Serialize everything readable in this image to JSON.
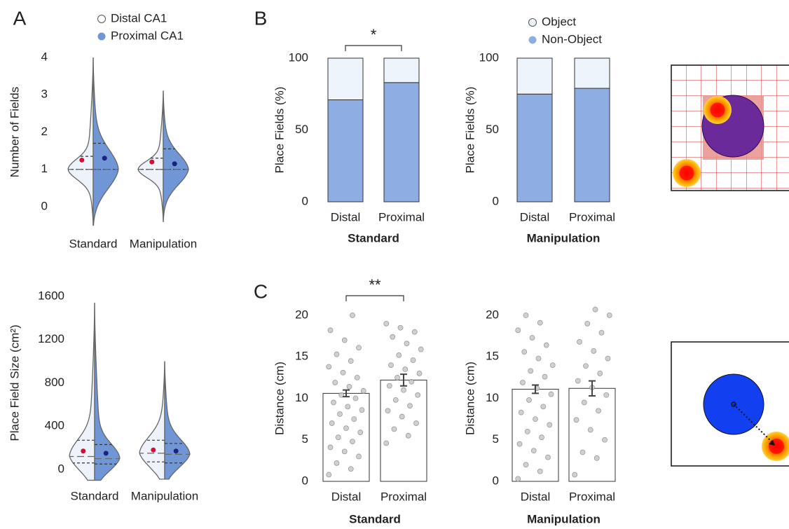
{
  "panel_labels": [
    "A",
    "B",
    "C"
  ],
  "chart_data": [
    {
      "type": "violin",
      "ylabel": "Number of Fields",
      "categories": [
        "Standard",
        "Manipulation"
      ],
      "ylim": [
        0,
        4
      ],
      "yticks": [
        0,
        1,
        2,
        3,
        4
      ],
      "series": [
        {
          "name": "Distal CA1",
          "color": "#eef3fb",
          "mean_color": "#d0103a",
          "values": [
            1.25,
            1.2
          ],
          "median": [
            1,
            1
          ],
          "q1": [
            1,
            1
          ],
          "q3": [
            1.35,
            1.3
          ],
          "min": [
            -0.5,
            -0.4
          ],
          "max": [
            4.0,
            3.1
          ]
        },
        {
          "name": "Proximal CA1",
          "color": "#7096d6",
          "mean_color": "#1a237e",
          "values": [
            1.3,
            1.15
          ],
          "median": [
            1,
            1
          ],
          "q1": [
            1,
            1
          ],
          "q3": [
            1.7,
            1.55
          ],
          "min": [
            -0.5,
            -0.4
          ],
          "max": [
            4.0,
            3.1
          ]
        }
      ]
    },
    {
      "type": "violin",
      "ylabel": "Place Field Size (cm²)",
      "categories": [
        "Standard",
        "Manipulation"
      ],
      "ylim": [
        0,
        1600
      ],
      "yticks": [
        0,
        400,
        800,
        1200,
        1600
      ],
      "series": [
        {
          "color": "#eef3fb",
          "mean_color": "#d0103a",
          "values": [
            170,
            180
          ],
          "median": [
            120,
            150
          ],
          "q1": [
            60,
            70
          ],
          "q3": [
            270,
            270
          ],
          "min": [
            -100,
            -90
          ],
          "max": [
            1540,
            1000
          ]
        },
        {
          "color": "#7096d6",
          "mean_color": "#1a237e",
          "values": [
            150,
            170
          ],
          "median": [
            100,
            140
          ],
          "q1": [
            50,
            60
          ],
          "q3": [
            230,
            240
          ],
          "min": [
            -100,
            -90
          ],
          "max": [
            1540,
            1000
          ]
        }
      ]
    },
    {
      "type": "stacked_bar",
      "ylabel": "Place Fields (%)",
      "xlabel": "Standard",
      "categories": [
        "Distal",
        "Proximal"
      ],
      "ylim": [
        0,
        100
      ],
      "yticks": [
        0,
        50,
        100
      ],
      "annotation": "*",
      "series": [
        {
          "color": "#8eaee3",
          "values": [
            71,
            83
          ]
        },
        {
          "color": "#eef4fc",
          "values": [
            29,
            17
          ]
        }
      ]
    },
    {
      "type": "stacked_bar",
      "ylabel": "Place Fields (%)",
      "xlabel": "Manipulation",
      "categories": [
        "Distal",
        "Proximal"
      ],
      "ylim": [
        0,
        100
      ],
      "yticks": [
        0,
        50,
        100
      ],
      "series": [
        {
          "name": "Non-Object",
          "color": "#8eaee3",
          "values": [
            75,
            79
          ]
        },
        {
          "name": "Object",
          "color": "#eef4fc",
          "values": [
            25,
            21
          ]
        }
      ]
    },
    {
      "type": "bar_points",
      "ylabel": "Distance (cm)",
      "xlabel": "Standard",
      "categories": [
        "Distal",
        "Proximal"
      ],
      "ylim": [
        0,
        20
      ],
      "yticks": [
        0,
        5,
        10,
        15,
        20
      ],
      "annotation": "**",
      "color": "#ffffff",
      "point_color": "#c8c8c8",
      "values": [
        10.6,
        12.2
      ],
      "errors": [
        0.4,
        0.7
      ],
      "points": [
        [
          0.8,
          1.5,
          2.2,
          3.0,
          3.6,
          4.1,
          4.8,
          5.3,
          5.9,
          6.4,
          7.0,
          7.5,
          8.1,
          8.6,
          9.0,
          9.5,
          10.0,
          10.4,
          10.9,
          11.4,
          11.9,
          12.5,
          13.1,
          13.8,
          14.5,
          15.3,
          16.1,
          17.0,
          18.2,
          20.0
        ],
        [
          4.6,
          5.5,
          6.3,
          7.0,
          7.8,
          8.5,
          9.1,
          9.8,
          10.4,
          11.0,
          11.5,
          12.0,
          12.5,
          13.0,
          13.5,
          14.0,
          14.6,
          15.2,
          15.9,
          16.6,
          17.4,
          18.0,
          18.5,
          19.0
        ]
      ]
    },
    {
      "type": "bar_points",
      "ylabel": "Distance (cm)",
      "xlabel": "Manipulation",
      "categories": [
        "Distal",
        "Proximal"
      ],
      "ylim": [
        0,
        20
      ],
      "yticks": [
        0,
        5,
        10,
        15,
        20
      ],
      "color": "#ffffff",
      "point_color": "#c8c8c8",
      "values": [
        11.1,
        11.2
      ],
      "errors": [
        0.5,
        0.9
      ],
      "points": [
        [
          0.3,
          1.2,
          2.0,
          2.9,
          3.7,
          4.5,
          5.3,
          6.0,
          6.8,
          7.5,
          8.3,
          9.0,
          9.8,
          10.5,
          11.2,
          11.9,
          12.6,
          13.3,
          14.0,
          14.8,
          15.6,
          16.4,
          17.3,
          18.2,
          19.1,
          20.0
        ],
        [
          0.8,
          2.8,
          3.5,
          5.0,
          6.2,
          7.4,
          8.5,
          9.5,
          10.4,
          11.3,
          12.1,
          13.0,
          13.9,
          14.8,
          15.7,
          16.8,
          17.9,
          19.0,
          20.0,
          20.7
        ]
      ]
    }
  ]
}
